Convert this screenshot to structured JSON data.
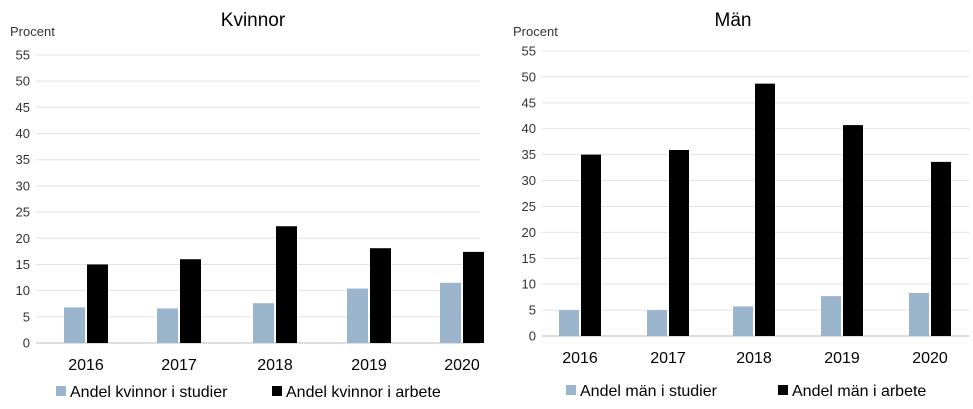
{
  "chart_data": [
    {
      "type": "bar",
      "title": "Kvinnor",
      "ylabel": "Procent",
      "xlabel": "",
      "ylim": [
        0,
        55
      ],
      "yticks": [
        0,
        5,
        10,
        15,
        20,
        25,
        30,
        35,
        40,
        45,
        50,
        55
      ],
      "grid": true,
      "legend_position": "bottom",
      "categories": [
        "2016",
        "2017",
        "2018",
        "2019",
        "2020"
      ],
      "series": [
        {
          "name": "Andel kvinnor i studier",
          "color": "#9bb6cc",
          "values": [
            6.8,
            6.6,
            7.6,
            10.4,
            11.5
          ]
        },
        {
          "name": "Andel kvinnor i arbete",
          "color": "#000000",
          "values": [
            15.0,
            16.0,
            22.3,
            18.1,
            17.4
          ]
        }
      ]
    },
    {
      "type": "bar",
      "title": "Män",
      "ylabel": "Procent",
      "xlabel": "",
      "ylim": [
        0,
        55
      ],
      "yticks": [
        0,
        5,
        10,
        15,
        20,
        25,
        30,
        35,
        40,
        45,
        50,
        55
      ],
      "grid": true,
      "legend_position": "bottom",
      "categories": [
        "2016",
        "2017",
        "2018",
        "2019",
        "2020"
      ],
      "series": [
        {
          "name": "Andel män i studier",
          "color": "#9bb6cc",
          "values": [
            5.0,
            5.0,
            5.7,
            7.7,
            8.3
          ]
        },
        {
          "name": "Andel män i arbete",
          "color": "#000000",
          "values": [
            35.0,
            35.9,
            48.7,
            40.7,
            33.6
          ]
        }
      ]
    }
  ]
}
